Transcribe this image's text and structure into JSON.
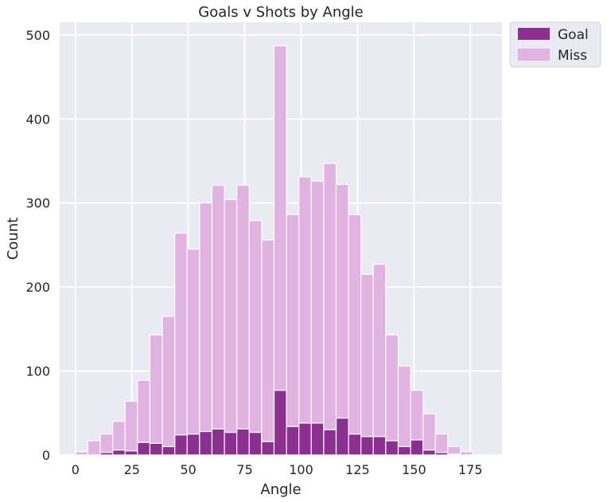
{
  "chart_data": {
    "type": "bar",
    "title": "Goals v Shots by Angle",
    "xlabel": "Angle",
    "ylabel": "Count",
    "xlim": [
      -7,
      189
    ],
    "ylim": [
      0,
      515
    ],
    "xticks": [
      0,
      25,
      50,
      75,
      100,
      125,
      150,
      175
    ],
    "yticks": [
      0,
      100,
      200,
      300,
      400,
      500
    ],
    "grid": true,
    "stacked": true,
    "legend_position": "outside-top-right",
    "bin_edges": [
      0,
      5.5,
      11,
      16.5,
      22,
      27.5,
      33,
      38.5,
      44,
      49.5,
      55,
      60.5,
      66,
      71.5,
      77,
      82.5,
      88,
      93.5,
      99,
      104.5,
      110,
      115.5,
      121,
      126.5,
      132,
      137.5,
      143,
      148.5,
      154,
      159.5,
      165,
      170.5,
      176,
      181.5
    ],
    "series": [
      {
        "name": "Goal",
        "color": "#8b2f91",
        "values": [
          0,
          0,
          3,
          6,
          5,
          15,
          14,
          10,
          24,
          25,
          28,
          31,
          27,
          31,
          27,
          16,
          77,
          34,
          38,
          38,
          30,
          44,
          25,
          22,
          22,
          17,
          10,
          18,
          6,
          3,
          1,
          0,
          0
        ]
      },
      {
        "name": "Miss",
        "color": "#e0b3e1",
        "values": [
          4,
          17,
          22,
          34,
          59,
          74,
          129,
          155,
          240,
          220,
          272,
          290,
          277,
          290,
          252,
          240,
          410,
          252,
          293,
          288,
          317,
          278,
          261,
          193,
          205,
          126,
          96,
          59,
          43,
          22,
          9,
          4,
          0
        ]
      }
    ]
  }
}
